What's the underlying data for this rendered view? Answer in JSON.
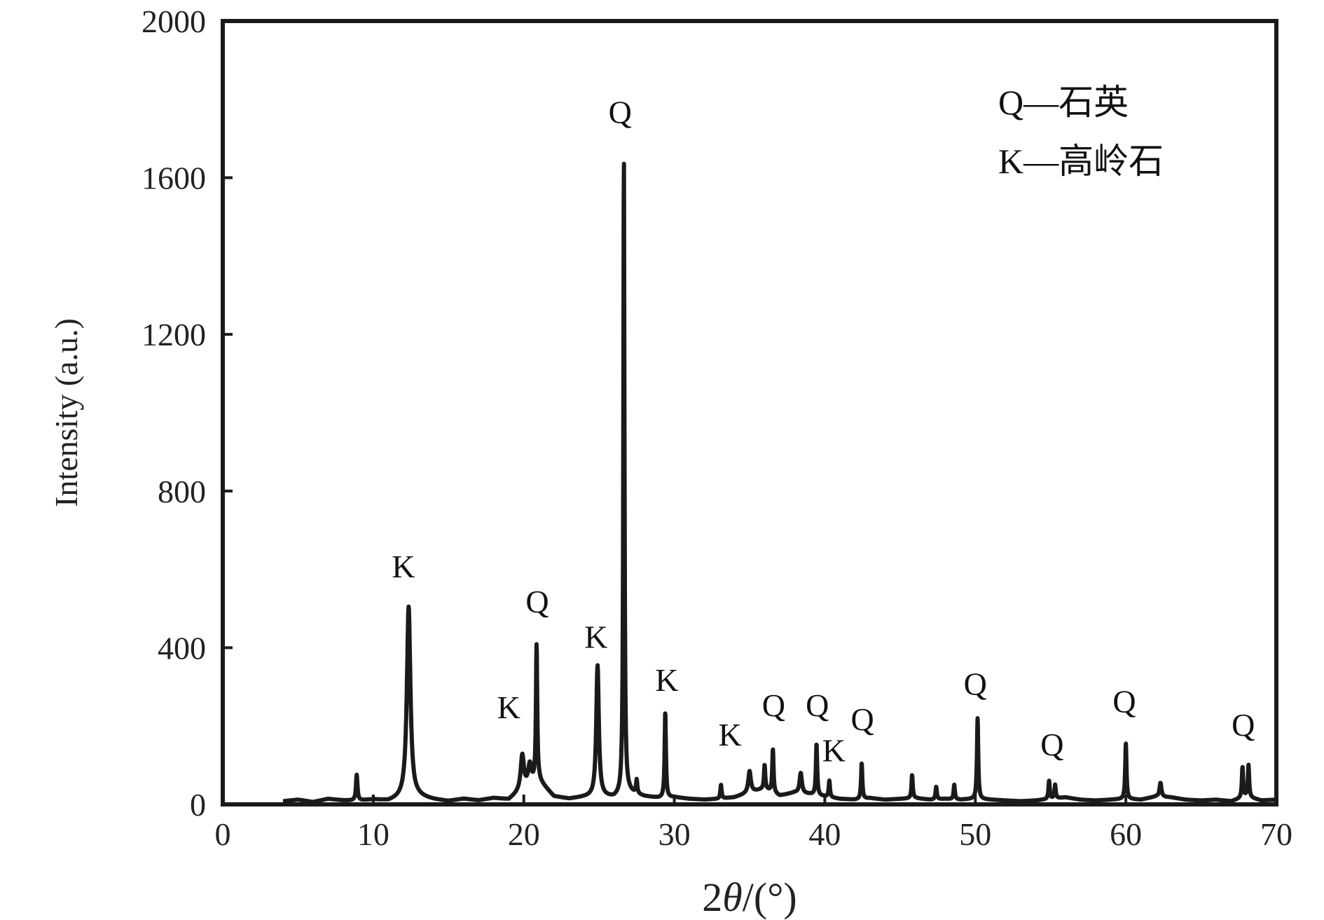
{
  "chart_data": {
    "type": "line",
    "title": "",
    "xlabel_prefix": "2",
    "xlabel_symbol": "θ",
    "xlabel_suffix": "/(°)",
    "ylabel": "Intensity (a.u.)",
    "xlim": [
      0,
      70
    ],
    "ylim": [
      0,
      2000
    ],
    "xticks": [
      0,
      10,
      20,
      30,
      40,
      50,
      60,
      70
    ],
    "yticks": [
      0,
      400,
      800,
      1200,
      1600,
      2000
    ],
    "grid": false,
    "legend": {
      "placement": "top-right",
      "entries": [
        {
          "symbol": "Q",
          "text": "—石英"
        },
        {
          "symbol": "K",
          "text": "—高岭石"
        }
      ]
    },
    "series": [
      {
        "color": "#1a1a1a",
        "baseline": [
          [
            4,
            8
          ],
          [
            5,
            12
          ],
          [
            6,
            6
          ],
          [
            7,
            14
          ],
          [
            8,
            10
          ],
          [
            9,
            9
          ],
          [
            10,
            12
          ],
          [
            11,
            8
          ],
          [
            12,
            15
          ],
          [
            13,
            18
          ],
          [
            14,
            12
          ],
          [
            15,
            8
          ],
          [
            16,
            14
          ],
          [
            17,
            10
          ],
          [
            18,
            16
          ],
          [
            19,
            12
          ],
          [
            20,
            40
          ],
          [
            21,
            60
          ],
          [
            22,
            20
          ],
          [
            23,
            14
          ],
          [
            24,
            18
          ],
          [
            25,
            20
          ],
          [
            26,
            16
          ],
          [
            27,
            30
          ],
          [
            28,
            20
          ],
          [
            29,
            16
          ],
          [
            30,
            18
          ],
          [
            31,
            14
          ],
          [
            32,
            12
          ],
          [
            33,
            14
          ],
          [
            34,
            18
          ],
          [
            35,
            30
          ],
          [
            36,
            40
          ],
          [
            37,
            22
          ],
          [
            38,
            30
          ],
          [
            39,
            26
          ],
          [
            40,
            20
          ],
          [
            41,
            14
          ],
          [
            42,
            12
          ],
          [
            43,
            16
          ],
          [
            44,
            12
          ],
          [
            45,
            14
          ],
          [
            46,
            16
          ],
          [
            47,
            12
          ],
          [
            48,
            14
          ],
          [
            49,
            12
          ],
          [
            50,
            14
          ],
          [
            51,
            12
          ],
          [
            52,
            10
          ],
          [
            53,
            8
          ],
          [
            54,
            10
          ],
          [
            55,
            14
          ],
          [
            56,
            18
          ],
          [
            57,
            12
          ],
          [
            58,
            10
          ],
          [
            59,
            12
          ],
          [
            60,
            14
          ],
          [
            61,
            12
          ],
          [
            62,
            20
          ],
          [
            63,
            18
          ],
          [
            64,
            12
          ],
          [
            65,
            10
          ],
          [
            66,
            12
          ],
          [
            67,
            8
          ],
          [
            68,
            20
          ],
          [
            69,
            10
          ],
          [
            70,
            12
          ]
        ],
        "peaks": [
          {
            "x": 8.9,
            "y": 75,
            "w": 0.12
          },
          {
            "x": 12.35,
            "y": 505,
            "w": 0.28
          },
          {
            "x": 19.9,
            "y": 125,
            "w": 0.25
          },
          {
            "x": 20.4,
            "y": 100,
            "w": 0.25
          },
          {
            "x": 20.85,
            "y": 405,
            "w": 0.1
          },
          {
            "x": 24.9,
            "y": 355,
            "w": 0.2
          },
          {
            "x": 26.65,
            "y": 1650,
            "w": 0.09
          },
          {
            "x": 27.5,
            "y": 60,
            "w": 0.1
          },
          {
            "x": 29.4,
            "y": 235,
            "w": 0.1
          },
          {
            "x": 33.1,
            "y": 50,
            "w": 0.1
          },
          {
            "x": 35.0,
            "y": 85,
            "w": 0.2
          },
          {
            "x": 36.0,
            "y": 100,
            "w": 0.1
          },
          {
            "x": 36.55,
            "y": 140,
            "w": 0.1
          },
          {
            "x": 38.4,
            "y": 80,
            "w": 0.18
          },
          {
            "x": 39.45,
            "y": 155,
            "w": 0.1
          },
          {
            "x": 40.3,
            "y": 60,
            "w": 0.1
          },
          {
            "x": 42.45,
            "y": 105,
            "w": 0.1
          },
          {
            "x": 45.8,
            "y": 75,
            "w": 0.1
          },
          {
            "x": 47.4,
            "y": 45,
            "w": 0.1
          },
          {
            "x": 48.6,
            "y": 50,
            "w": 0.1
          },
          {
            "x": 50.15,
            "y": 220,
            "w": 0.1
          },
          {
            "x": 54.9,
            "y": 60,
            "w": 0.1
          },
          {
            "x": 55.3,
            "y": 50,
            "w": 0.1
          },
          {
            "x": 60.0,
            "y": 155,
            "w": 0.1
          },
          {
            "x": 62.3,
            "y": 55,
            "w": 0.15
          },
          {
            "x": 67.75,
            "y": 95,
            "w": 0.1
          },
          {
            "x": 68.15,
            "y": 100,
            "w": 0.1
          }
        ]
      }
    ],
    "annotations": [
      {
        "text": "K",
        "x": 12.0,
        "y": 580
      },
      {
        "text": "Q",
        "x": 20.9,
        "y": 490
      },
      {
        "text": "K",
        "x": 19.0,
        "y": 220
      },
      {
        "text": "K",
        "x": 24.8,
        "y": 400
      },
      {
        "text": "Q",
        "x": 26.4,
        "y": 1740
      },
      {
        "text": "K",
        "x": 29.5,
        "y": 290
      },
      {
        "text": "K",
        "x": 33.7,
        "y": 150
      },
      {
        "text": "Q",
        "x": 36.6,
        "y": 225
      },
      {
        "text": "Q",
        "x": 39.5,
        "y": 225
      },
      {
        "text": "K",
        "x": 40.6,
        "y": 110
      },
      {
        "text": "Q",
        "x": 42.5,
        "y": 190
      },
      {
        "text": "Q",
        "x": 50.0,
        "y": 280
      },
      {
        "text": "Q",
        "x": 55.1,
        "y": 125
      },
      {
        "text": "Q",
        "x": 59.9,
        "y": 235
      },
      {
        "text": "Q",
        "x": 67.8,
        "y": 175
      }
    ]
  }
}
